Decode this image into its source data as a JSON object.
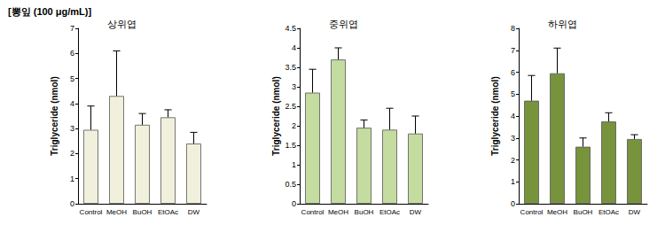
{
  "title": "[뽕잎 (100 μg/mL)]",
  "chart_data": [
    {
      "type": "bar",
      "title": "상위엽",
      "ylabel": "Triglyceride (nmol)",
      "categories": [
        "Control",
        "MeOH",
        "BuOH",
        "EtOAc",
        "DW"
      ],
      "values": [
        2.95,
        4.3,
        3.15,
        3.45,
        2.4
      ],
      "errors": [
        0.95,
        1.8,
        0.45,
        0.3,
        0.45
      ],
      "color": "#f0f0dc",
      "ylim": [
        0,
        7
      ],
      "yticks": [
        0,
        1,
        2,
        3,
        4,
        5,
        6,
        7
      ],
      "grid": false
    },
    {
      "type": "bar",
      "title": "중위엽",
      "ylabel": "Triglyceride (nmol)",
      "categories": [
        "Control",
        "MeOH",
        "BuOH",
        "EtOAc",
        "DW"
      ],
      "values": [
        2.85,
        3.7,
        1.95,
        1.9,
        1.8
      ],
      "errors": [
        0.6,
        0.3,
        0.2,
        0.55,
        0.45
      ],
      "color": "#c4dca0",
      "ylim": [
        0,
        4.5
      ],
      "yticks": [
        0,
        0.5,
        1,
        1.5,
        2,
        2.5,
        3,
        3.5,
        4,
        4.5
      ],
      "grid": false
    },
    {
      "type": "bar",
      "title": "하위엽",
      "ylabel": "Triglyceride (nmol)",
      "categories": [
        "Control",
        "MeOH",
        "BuOH",
        "EtOAc",
        "DW"
      ],
      "values": [
        4.7,
        5.95,
        2.6,
        3.75,
        2.95
      ],
      "errors": [
        1.15,
        1.15,
        0.4,
        0.4,
        0.2
      ],
      "color": "#77933c",
      "ylim": [
        0,
        8
      ],
      "yticks": [
        0,
        1,
        2,
        3,
        4,
        5,
        6,
        7,
        8
      ],
      "grid": false
    }
  ]
}
